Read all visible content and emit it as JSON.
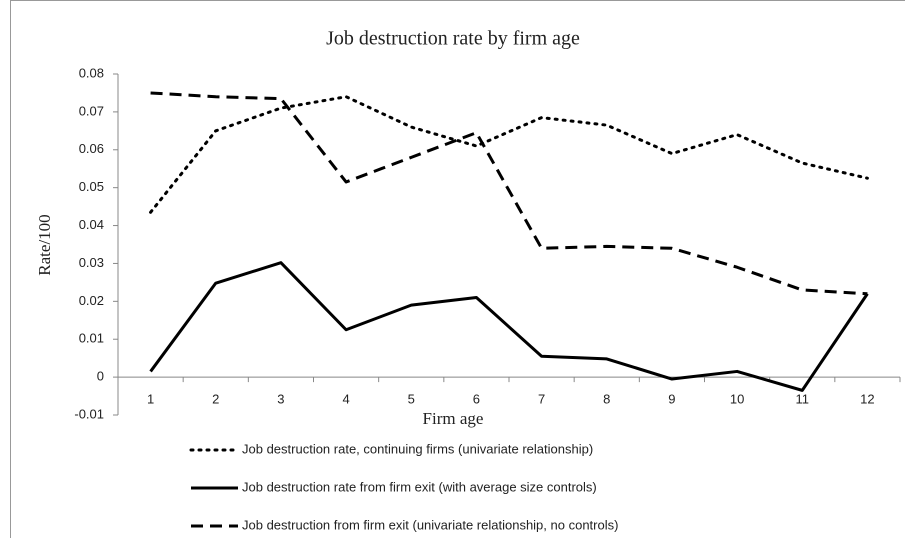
{
  "chart_data": {
    "type": "line",
    "title": "Job destruction rate by firm age",
    "x_label": "Firm age",
    "y_label": "Rate/100",
    "categories": [
      "1",
      "2",
      "3",
      "4",
      "5",
      "6",
      "7",
      "8",
      "9",
      "10",
      "11",
      "12"
    ],
    "ylim": [
      -0.01,
      0.08
    ],
    "yticks": [
      -0.01,
      0,
      0.01,
      0.02,
      0.03,
      0.04,
      0.05,
      0.06,
      0.07,
      0.08
    ],
    "grid": false,
    "legend": "bottom",
    "series": [
      {
        "name": "Job destruction rate, continuing firms (univariate relationship)",
        "color": "#000000",
        "line_style": "dotted",
        "values": [
          0.0435,
          0.065,
          0.071,
          0.074,
          0.066,
          0.061,
          0.0685,
          0.0665,
          0.059,
          0.064,
          0.0565,
          0.0525
        ]
      },
      {
        "name": "Job destruction rate from firm exit  (with average size controls)",
        "color": "#000000",
        "line_style": "solid",
        "values": [
          0.0015,
          0.0248,
          0.0302,
          0.0125,
          0.019,
          0.021,
          0.0055,
          0.0048,
          -0.0005,
          0.0015,
          -0.0035,
          0.022
        ]
      },
      {
        "name": "Job destruction from firm exit (univariate relationship, no controls)",
        "color": "#000000",
        "line_style": "dashed",
        "values": [
          0.075,
          0.074,
          0.0735,
          0.0515,
          0.058,
          0.0645,
          0.034,
          0.0345,
          0.034,
          0.029,
          0.023,
          0.022
        ]
      }
    ]
  }
}
